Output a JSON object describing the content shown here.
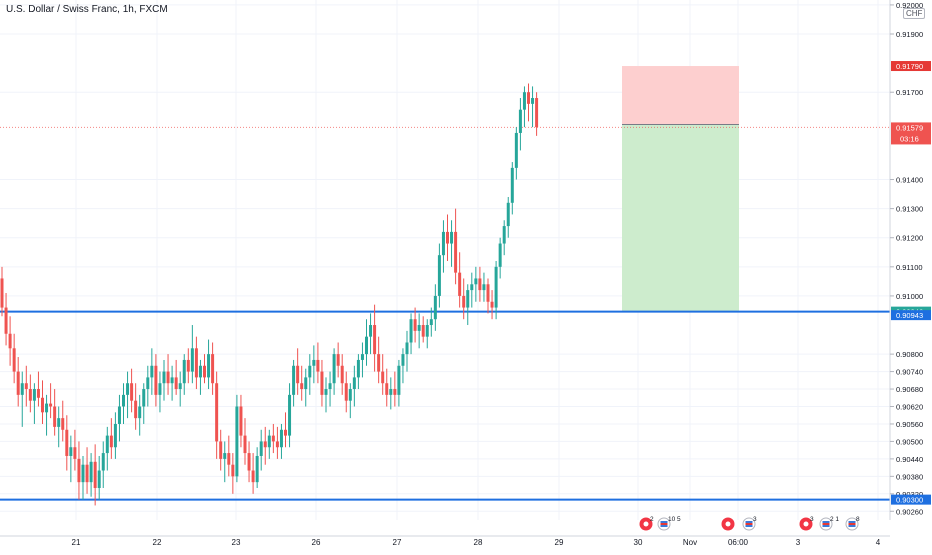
{
  "title": "U.S. Dollar / Swiss Franc, 1h, FXCM",
  "currency": "CHF",
  "chart_data": {
    "type": "candlestick",
    "title": "U.S. Dollar / Swiss Franc, 1h, FXCM",
    "ylim": [
      0.9023,
      0.9201
    ],
    "y_ticks": [
      "0.92000",
      "0.91900",
      "0.91700",
      "0.91400",
      "0.91300",
      "0.91200",
      "0.91100",
      "0.91000",
      "0.90800",
      "0.90740",
      "0.90680",
      "0.90620",
      "0.90560",
      "0.90500",
      "0.90440",
      "0.90380",
      "0.90320",
      "0.90260"
    ],
    "x_ticks": [
      "21",
      "22",
      "23",
      "26",
      "27",
      "28",
      "29",
      "30",
      "Nov",
      "06:00",
      "3",
      "4"
    ],
    "series": [
      {
        "type": "ohlc",
        "values": [
          [
            0.9106,
            0.911,
            0.9093,
            0.9096
          ],
          [
            0.9096,
            0.9101,
            0.9083,
            0.9087
          ],
          [
            0.9087,
            0.9093,
            0.9076,
            0.9082
          ],
          [
            0.9082,
            0.9087,
            0.907,
            0.9074
          ],
          [
            0.9074,
            0.9079,
            0.9062,
            0.9066
          ],
          [
            0.9066,
            0.9074,
            0.9055,
            0.907
          ],
          [
            0.907,
            0.9076,
            0.9062,
            0.9068
          ],
          [
            0.9068,
            0.9073,
            0.906,
            0.9064
          ],
          [
            0.9064,
            0.907,
            0.9056,
            0.9068
          ],
          [
            0.9068,
            0.9074,
            0.9062,
            0.9065
          ],
          [
            0.9065,
            0.9071,
            0.9056,
            0.906
          ],
          [
            0.906,
            0.9066,
            0.9052,
            0.9063
          ],
          [
            0.9063,
            0.907,
            0.9058,
            0.9062
          ],
          [
            0.9062,
            0.9068,
            0.9052,
            0.9055
          ],
          [
            0.9055,
            0.9062,
            0.9048,
            0.9058
          ],
          [
            0.9058,
            0.9064,
            0.905,
            0.9054
          ],
          [
            0.9054,
            0.9059,
            0.904,
            0.9045
          ],
          [
            0.9045,
            0.9052,
            0.9036,
            0.9048
          ],
          [
            0.9048,
            0.9054,
            0.904,
            0.9044
          ],
          [
            0.9044,
            0.905,
            0.903,
            0.9036
          ],
          [
            0.9036,
            0.9045,
            0.903,
            0.9042
          ],
          [
            0.9042,
            0.9048,
            0.9032,
            0.9036
          ],
          [
            0.9036,
            0.9046,
            0.9031,
            0.9043
          ],
          [
            0.9043,
            0.9049,
            0.9028,
            0.9034
          ],
          [
            0.9034,
            0.9045,
            0.903,
            0.904
          ],
          [
            0.904,
            0.905,
            0.9034,
            0.9046
          ],
          [
            0.9046,
            0.9055,
            0.904,
            0.9052
          ],
          [
            0.9052,
            0.9058,
            0.9044,
            0.9048
          ],
          [
            0.9048,
            0.906,
            0.9044,
            0.9056
          ],
          [
            0.9056,
            0.9066,
            0.905,
            0.9062
          ],
          [
            0.9062,
            0.907,
            0.9056,
            0.9066
          ],
          [
            0.9066,
            0.9074,
            0.9058,
            0.907
          ],
          [
            0.907,
            0.9075,
            0.906,
            0.9064
          ],
          [
            0.9064,
            0.907,
            0.9054,
            0.9058
          ],
          [
            0.9058,
            0.9066,
            0.9052,
            0.9062
          ],
          [
            0.9062,
            0.907,
            0.9056,
            0.9068
          ],
          [
            0.9068,
            0.9076,
            0.9062,
            0.9072
          ],
          [
            0.9072,
            0.9082,
            0.9066,
            0.9076
          ],
          [
            0.9076,
            0.908,
            0.9062,
            0.9066
          ],
          [
            0.9066,
            0.9074,
            0.906,
            0.907
          ],
          [
            0.907,
            0.9078,
            0.9064,
            0.9074
          ],
          [
            0.9074,
            0.908,
            0.9066,
            0.907
          ],
          [
            0.907,
            0.9076,
            0.9064,
            0.9072
          ],
          [
            0.9072,
            0.9078,
            0.9066,
            0.9068
          ],
          [
            0.9068,
            0.9074,
            0.9062,
            0.907
          ],
          [
            0.907,
            0.908,
            0.9066,
            0.9078
          ],
          [
            0.9078,
            0.9082,
            0.907,
            0.9074
          ],
          [
            0.9074,
            0.909,
            0.907,
            0.9082
          ],
          [
            0.9082,
            0.9086,
            0.9068,
            0.9072
          ],
          [
            0.9072,
            0.9078,
            0.9066,
            0.9076
          ],
          [
            0.9076,
            0.908,
            0.907,
            0.9072
          ],
          [
            0.9072,
            0.9085,
            0.9068,
            0.908
          ],
          [
            0.908,
            0.9084,
            0.9066,
            0.907
          ],
          [
            0.907,
            0.9074,
            0.9044,
            0.905
          ],
          [
            0.905,
            0.9054,
            0.904,
            0.9044
          ],
          [
            0.9044,
            0.905,
            0.9036,
            0.9046
          ],
          [
            0.9046,
            0.9052,
            0.9038,
            0.9042
          ],
          [
            0.9042,
            0.9046,
            0.9032,
            0.9038
          ],
          [
            0.9038,
            0.9066,
            0.9036,
            0.9062
          ],
          [
            0.9062,
            0.9066,
            0.9048,
            0.9052
          ],
          [
            0.9052,
            0.9058,
            0.9042,
            0.9046
          ],
          [
            0.9046,
            0.905,
            0.9036,
            0.904
          ],
          [
            0.904,
            0.9046,
            0.9032,
            0.9036
          ],
          [
            0.9036,
            0.9048,
            0.9034,
            0.9045
          ],
          [
            0.9045,
            0.9054,
            0.904,
            0.905
          ],
          [
            0.905,
            0.9055,
            0.9042,
            0.9048
          ],
          [
            0.9048,
            0.9054,
            0.9044,
            0.9052
          ],
          [
            0.9052,
            0.9056,
            0.9046,
            0.905
          ],
          [
            0.905,
            0.9055,
            0.9044,
            0.9048
          ],
          [
            0.9048,
            0.9056,
            0.9044,
            0.9054
          ],
          [
            0.9054,
            0.906,
            0.9048,
            0.9052
          ],
          [
            0.9052,
            0.907,
            0.9048,
            0.9066
          ],
          [
            0.9066,
            0.9078,
            0.9062,
            0.9076
          ],
          [
            0.9076,
            0.9082,
            0.9066,
            0.907
          ],
          [
            0.907,
            0.9076,
            0.9064,
            0.9068
          ],
          [
            0.9068,
            0.9075,
            0.9062,
            0.9072
          ],
          [
            0.9072,
            0.908,
            0.9066,
            0.9076
          ],
          [
            0.9076,
            0.9083,
            0.907,
            0.9078
          ],
          [
            0.9078,
            0.9084,
            0.907,
            0.9074
          ],
          [
            0.9074,
            0.9078,
            0.9062,
            0.9066
          ],
          [
            0.9066,
            0.9072,
            0.906,
            0.9068
          ],
          [
            0.9068,
            0.9074,
            0.9062,
            0.907
          ],
          [
            0.907,
            0.9082,
            0.9066,
            0.908
          ],
          [
            0.908,
            0.9084,
            0.9072,
            0.9076
          ],
          [
            0.9076,
            0.908,
            0.9066,
            0.907
          ],
          [
            0.907,
            0.9074,
            0.906,
            0.9064
          ],
          [
            0.9064,
            0.907,
            0.9058,
            0.9068
          ],
          [
            0.9068,
            0.9076,
            0.9062,
            0.9072
          ],
          [
            0.9072,
            0.908,
            0.9068,
            0.9078
          ],
          [
            0.9078,
            0.9084,
            0.9072,
            0.908
          ],
          [
            0.908,
            0.9092,
            0.9076,
            0.9086
          ],
          [
            0.9086,
            0.9094,
            0.908,
            0.909
          ],
          [
            0.909,
            0.9097,
            0.9074,
            0.908
          ],
          [
            0.908,
            0.9086,
            0.907,
            0.9074
          ],
          [
            0.9074,
            0.908,
            0.9066,
            0.907
          ],
          [
            0.907,
            0.9075,
            0.9062,
            0.9066
          ],
          [
            0.9066,
            0.9072,
            0.9061,
            0.9068
          ],
          [
            0.9068,
            0.9074,
            0.9062,
            0.9066
          ],
          [
            0.9066,
            0.9078,
            0.9062,
            0.9076
          ],
          [
            0.9076,
            0.9082,
            0.907,
            0.908
          ],
          [
            0.908,
            0.9088,
            0.9074,
            0.9084
          ],
          [
            0.9084,
            0.9094,
            0.908,
            0.9092
          ],
          [
            0.9092,
            0.9096,
            0.9084,
            0.9088
          ],
          [
            0.9088,
            0.9094,
            0.9082,
            0.909
          ],
          [
            0.909,
            0.9093,
            0.9084,
            0.9086
          ],
          [
            0.9086,
            0.9092,
            0.9082,
            0.909
          ],
          [
            0.909,
            0.9096,
            0.9086,
            0.9092
          ],
          [
            0.9092,
            0.9104,
            0.9088,
            0.91
          ],
          [
            0.91,
            0.9118,
            0.9096,
            0.9114
          ],
          [
            0.9114,
            0.9126,
            0.9108,
            0.9122
          ],
          [
            0.9122,
            0.9128,
            0.9112,
            0.9118
          ],
          [
            0.9118,
            0.9126,
            0.911,
            0.9122
          ],
          [
            0.9122,
            0.913,
            0.9104,
            0.9108
          ],
          [
            0.9108,
            0.9115,
            0.9096,
            0.91
          ],
          [
            0.91,
            0.9106,
            0.9092,
            0.9096
          ],
          [
            0.9096,
            0.9104,
            0.909,
            0.9102
          ],
          [
            0.9102,
            0.9108,
            0.9096,
            0.9104
          ],
          [
            0.9104,
            0.911,
            0.9098,
            0.9106
          ],
          [
            0.9106,
            0.911,
            0.9098,
            0.9102
          ],
          [
            0.9102,
            0.9108,
            0.9098,
            0.9104
          ],
          [
            0.9104,
            0.9106,
            0.9094,
            0.9098
          ],
          [
            0.9098,
            0.9102,
            0.9092,
            0.9096
          ],
          [
            0.9096,
            0.9112,
            0.9092,
            0.911
          ],
          [
            0.911,
            0.912,
            0.9106,
            0.9118
          ],
          [
            0.9118,
            0.9126,
            0.9114,
            0.9124
          ],
          [
            0.9124,
            0.9134,
            0.912,
            0.9132
          ],
          [
            0.9132,
            0.9146,
            0.9128,
            0.9144
          ],
          [
            0.9144,
            0.9158,
            0.914,
            0.9156
          ],
          [
            0.9156,
            0.9168,
            0.915,
            0.9164
          ],
          [
            0.9164,
            0.9172,
            0.9158,
            0.917
          ],
          [
            0.917,
            0.9173,
            0.916,
            0.9166
          ],
          [
            0.9166,
            0.9172,
            0.9158,
            0.9168
          ],
          [
            0.9168,
            0.917,
            0.9155,
            0.9158
          ]
        ]
      }
    ],
    "price_lines": [
      {
        "label": "0.90946",
        "value": 0.90946,
        "color": "#1e6fe0"
      },
      {
        "label": "0.90300",
        "value": 0.903,
        "color": "#1e6fe0"
      }
    ],
    "position_tool": {
      "stop": "0.91790",
      "entry": "0.91589",
      "target": "0.90946"
    },
    "current_price": {
      "label": "0.91579",
      "countdown": "03:16"
    },
    "axis_labels": {
      "r0": "0.90943"
    },
    "events": [
      {
        "icon": "red-event-icon",
        "label": "2"
      },
      {
        "icon": "flag-event-icon",
        "label": "10 5"
      },
      {
        "icon": "red-event-icon",
        "label": ""
      },
      {
        "icon": "flag-event-icon",
        "label": "3"
      },
      {
        "icon": "red-event-icon",
        "label": "3"
      },
      {
        "icon": "flag-event-icon",
        "label": "2 1"
      },
      {
        "icon": "flag-event-icon",
        "label": "8"
      }
    ],
    "colors": {
      "up": "#26a69a",
      "down": "#ef5350",
      "hline": "#1e6fe0",
      "stop_zone": "#fdcfcf",
      "target_zone": "#cdeccd"
    }
  }
}
